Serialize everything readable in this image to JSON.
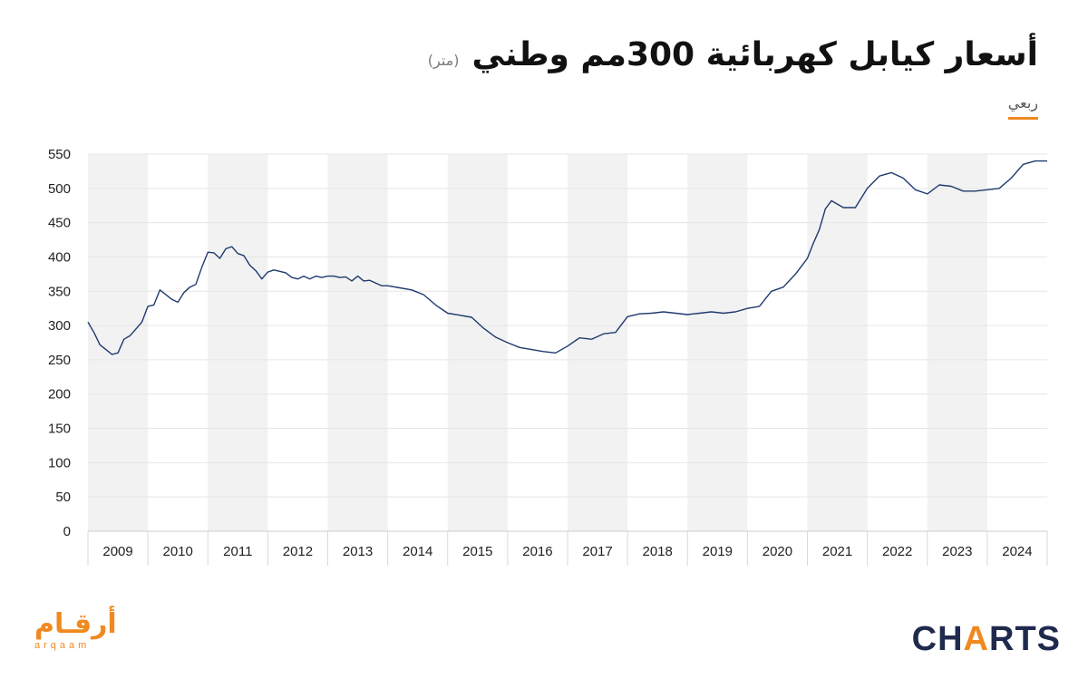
{
  "header": {
    "title": "أسعار كيابل كهربائية 300مم وطني",
    "unit": "(متر)",
    "frequency_tab": "ربعي"
  },
  "branding": {
    "arqaam_ar": "أرقـام",
    "arqaam_en": "arqaam",
    "charts_pre": "CH",
    "charts_accent": "A",
    "charts_post": "RTS"
  },
  "colors": {
    "line": "#1f3a6e",
    "band": "#f2f2f2",
    "grid": "#e6e6e6",
    "accent": "#f0891f"
  },
  "chart_data": {
    "type": "line",
    "title": "أسعار كيابل كهربائية 300مم وطني",
    "unit": "(متر)",
    "ylim": [
      0,
      550
    ],
    "yticks": [
      0,
      50,
      100,
      150,
      200,
      250,
      300,
      350,
      400,
      450,
      500,
      550
    ],
    "xlim": [
      2009.0,
      2025.0
    ],
    "years": [
      "2009",
      "2010",
      "2011",
      "2012",
      "2013",
      "2014",
      "2015",
      "2016",
      "2017",
      "2018",
      "2019",
      "2020",
      "2021",
      "2022",
      "2023",
      "2024"
    ],
    "grid": true,
    "alternating_year_bands": true,
    "series": [
      {
        "x": [
          2009.0,
          2009.1,
          2009.2,
          2009.3,
          2009.4,
          2009.5,
          2009.6,
          2009.7,
          2009.8,
          2009.9,
          2010.0,
          2010.1,
          2010.2,
          2010.3,
          2010.4,
          2010.5,
          2010.6,
          2010.7,
          2010.8,
          2010.9,
          2011.0,
          2011.1,
          2011.2,
          2011.3,
          2011.4,
          2011.5,
          2011.6,
          2011.7,
          2011.8,
          2011.9,
          2012.0,
          2012.1,
          2012.2,
          2012.3,
          2012.4,
          2012.5,
          2012.6,
          2012.7,
          2012.8,
          2012.9,
          2013.0,
          2013.1,
          2013.2,
          2013.3,
          2013.4,
          2013.5,
          2013.6,
          2013.7,
          2013.8,
          2013.9,
          2014.0,
          2014.2,
          2014.4,
          2014.6,
          2014.8,
          2015.0,
          2015.2,
          2015.4,
          2015.6,
          2015.8,
          2016.0,
          2016.2,
          2016.4,
          2016.6,
          2016.8,
          2017.0,
          2017.2,
          2017.4,
          2017.6,
          2017.8,
          2018.0,
          2018.2,
          2018.4,
          2018.6,
          2018.8,
          2019.0,
          2019.2,
          2019.4,
          2019.6,
          2019.8,
          2020.0,
          2020.2,
          2020.4,
          2020.6,
          2020.8,
          2021.0,
          2021.1,
          2021.2,
          2021.3,
          2021.4,
          2021.6,
          2021.8,
          2022.0,
          2022.2,
          2022.4,
          2022.6,
          2022.8,
          2023.0,
          2023.2,
          2023.4,
          2023.6,
          2023.8,
          2024.0,
          2024.2,
          2024.4,
          2024.6,
          2024.8,
          2025.0
        ],
        "values": [
          305,
          290,
          272,
          265,
          258,
          260,
          280,
          285,
          295,
          305,
          328,
          330,
          352,
          345,
          338,
          334,
          348,
          356,
          360,
          385,
          407,
          406,
          398,
          412,
          415,
          405,
          402,
          388,
          380,
          368,
          378,
          381,
          379,
          377,
          370,
          368,
          372,
          368,
          372,
          370,
          372,
          372,
          370,
          371,
          365,
          372,
          365,
          366,
          362,
          358,
          358,
          355,
          352,
          345,
          330,
          318,
          315,
          312,
          296,
          283,
          275,
          268,
          265,
          262,
          260,
          270,
          282,
          280,
          288,
          290,
          313,
          317,
          318,
          320,
          318,
          316,
          318,
          320,
          318,
          320,
          325,
          328,
          350,
          356,
          375,
          398,
          420,
          440,
          470,
          482,
          472,
          472,
          500,
          518,
          523,
          515,
          498,
          492,
          505,
          503,
          496,
          496,
          498,
          500,
          515,
          535,
          540,
          540
        ]
      }
    ]
  }
}
